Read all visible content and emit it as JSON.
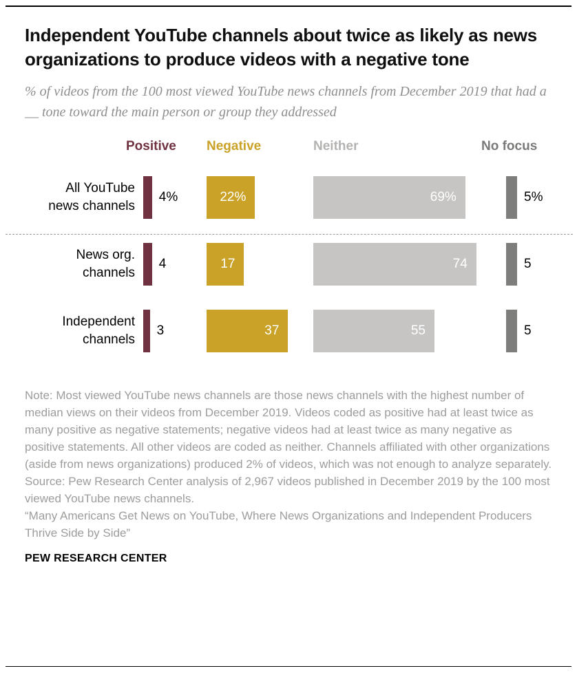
{
  "header": {
    "title": "Independent YouTube channels about twice as likely as news organizations to produce videos with a negative tone",
    "subtitle": "% of videos from the 100 most viewed YouTube news channels from December 2019 that had a __ tone toward the main person or group they addressed"
  },
  "chart_data": {
    "type": "bar",
    "orientation": "horizontal",
    "categories": [
      "All YouTube\nnews channels",
      "News org.\nchannels",
      "Independent\nchannels"
    ],
    "series": [
      {
        "name": "Positive",
        "color": "#703140",
        "header_color": "#703140",
        "values": [
          4,
          4,
          3
        ],
        "value_position": "outside"
      },
      {
        "name": "Negative",
        "color": "#c9a227",
        "header_color": "#c9a227",
        "values": [
          22,
          17,
          37
        ],
        "value_position": "inside"
      },
      {
        "name": "Neither",
        "color": "#c6c5c4",
        "header_color": "#b3b2b1",
        "values": [
          69,
          74,
          55
        ],
        "value_position": "inside"
      },
      {
        "name": "No focus",
        "color": "#7e7e7d",
        "header_color": "#7a7a79",
        "values": [
          5,
          5,
          5
        ],
        "value_position": "outside"
      }
    ],
    "first_row_suffix": "%",
    "axis_max": 100,
    "separator_after_row": 0
  },
  "notes": {
    "note": "Note: Most viewed YouTube news channels are those news channels with the highest number of median views on their videos from December 2019. Videos coded as positive had at least twice as many positive as negative statements; negative videos had at least twice as many negative as positive statements. All other videos are coded as neither. Channels affiliated with other organizations (aside from news organizations) produced 2% of videos, which was not enough to analyze separately.",
    "source": "Source: Pew Research Center analysis of 2,967 videos published in December 2019 by the 100 most viewed YouTube news channels.",
    "report": "“Many Americans Get News on YouTube, Where News Organizations and Independent Producers Thrive Side by Side”"
  },
  "footer": {
    "brand": "PEW RESEARCH CENTER"
  }
}
